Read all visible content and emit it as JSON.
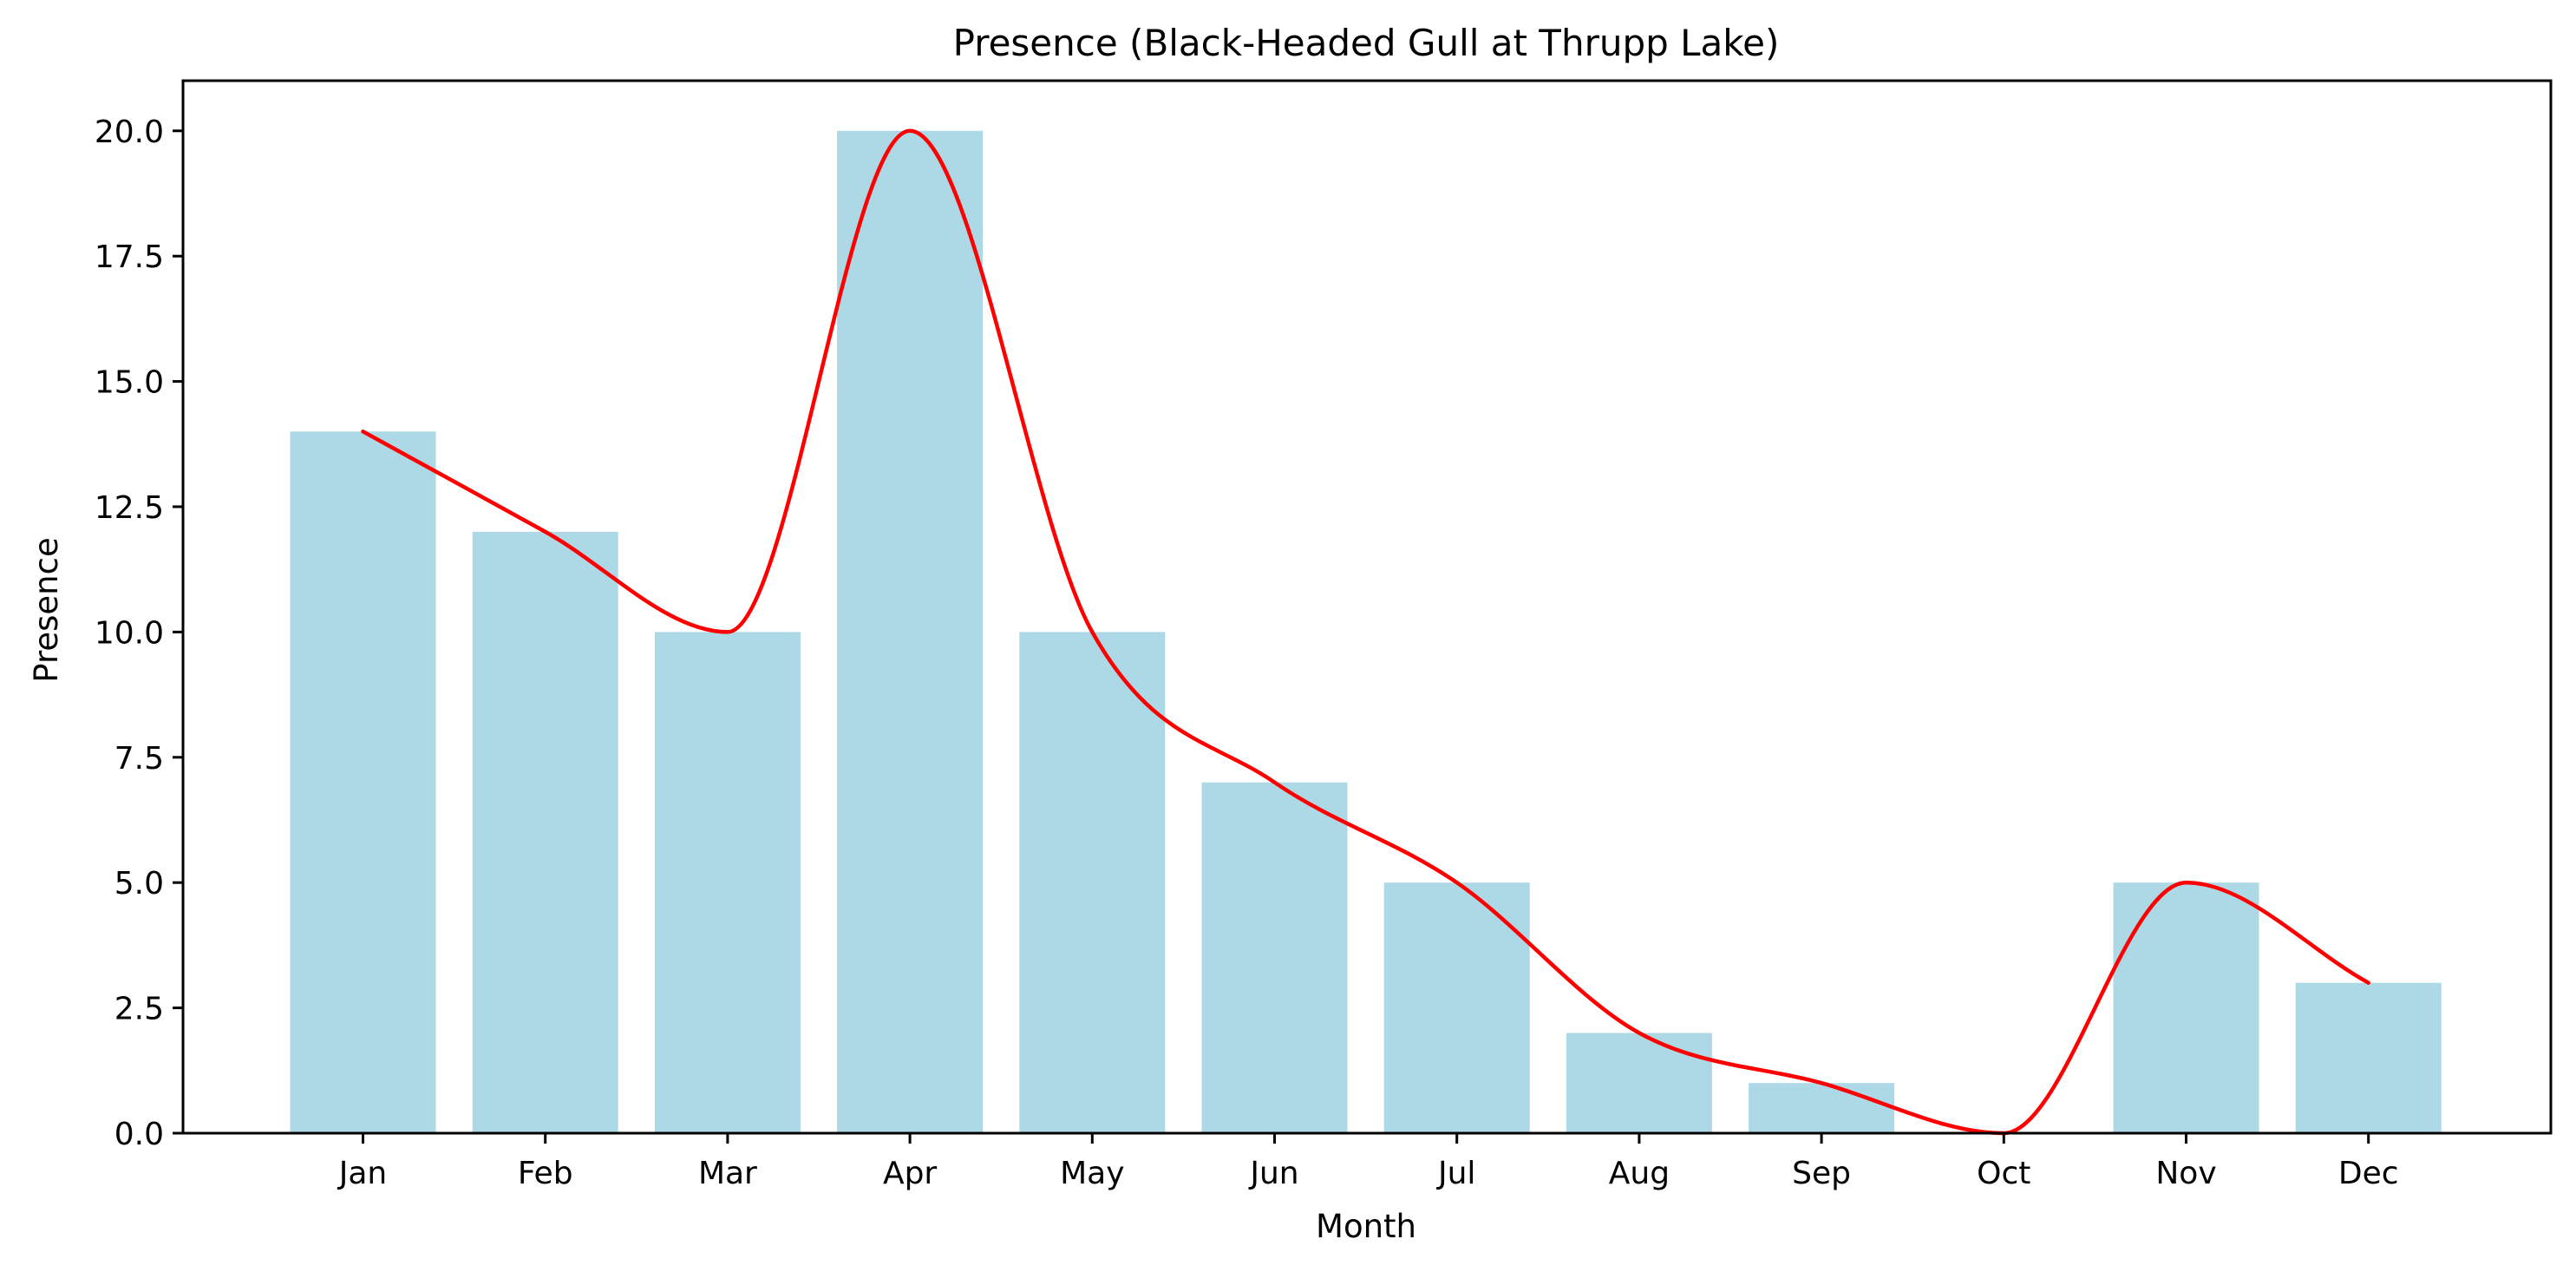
{
  "chart_data": {
    "type": "bar",
    "title": "Presence (Black-Headed Gull at Thrupp Lake)",
    "xlabel": "Month",
    "ylabel": "Presence",
    "categories": [
      "Jan",
      "Feb",
      "Mar",
      "Apr",
      "May",
      "Jun",
      "Jul",
      "Aug",
      "Sep",
      "Oct",
      "Nov",
      "Dec"
    ],
    "values": [
      14,
      12,
      10,
      20,
      10,
      7,
      5,
      2,
      1,
      0,
      5,
      3
    ],
    "ylim": [
      0,
      21
    ],
    "yticks": [
      "0.0",
      "2.5",
      "5.0",
      "7.5",
      "10.0",
      "12.5",
      "15.0",
      "17.5",
      "20.0"
    ],
    "bar_color": "#add8e6",
    "line_color": "#ff0000",
    "grid": false,
    "legend": "none"
  }
}
